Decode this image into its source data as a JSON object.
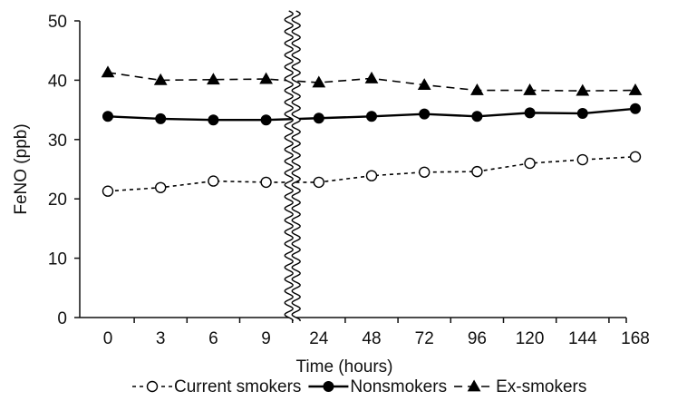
{
  "chart_data": {
    "type": "line",
    "title": "",
    "xlabel": "Time (hours)",
    "ylabel": "FeNO (ppb)",
    "ylim": [
      0,
      50
    ],
    "yticks": [
      0,
      10,
      20,
      30,
      40,
      50
    ],
    "categories": [
      "0",
      "3",
      "6",
      "9",
      "24",
      "48",
      "72",
      "96",
      "120",
      "144",
      "168"
    ],
    "axis_break": {
      "between": [
        "9",
        "24"
      ],
      "style": "wavy-vertical"
    },
    "grid": false,
    "legend_position": "bottom",
    "series": [
      {
        "name": "Current smokers",
        "values": [
          21.3,
          21.9,
          23.0,
          22.8,
          22.8,
          23.9,
          24.5,
          24.6,
          26.0,
          26.6,
          27.1
        ],
        "line_style": "dotted",
        "marker": "open-circle",
        "color": "#000000"
      },
      {
        "name": "Nonsmokers",
        "values": [
          33.9,
          33.5,
          33.3,
          33.3,
          33.6,
          33.9,
          34.3,
          33.9,
          34.5,
          34.4,
          35.2
        ],
        "line_style": "solid",
        "marker": "filled-circle",
        "color": "#000000"
      },
      {
        "name": "Ex-smokers",
        "values": [
          41.3,
          40.0,
          40.1,
          40.2,
          39.6,
          40.3,
          39.2,
          38.3,
          38.3,
          38.2,
          38.3
        ],
        "line_style": "dashed",
        "marker": "filled-triangle",
        "color": "#000000"
      }
    ]
  }
}
